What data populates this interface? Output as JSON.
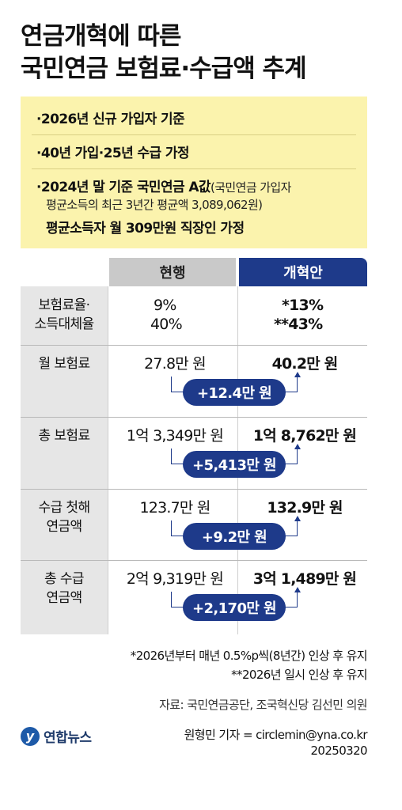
{
  "title": {
    "line1": "연금개혁에 따른",
    "line2": "국민연금 보험료·수급액 추계"
  },
  "notes": {
    "n1": "·2026년 신규 가입자 기준",
    "n2": "·40년 가입·25년 수급 가정",
    "n3_bold": "·2024년 말 기준 국민연금 A값",
    "n3_sub1": "(국민연금 가입자",
    "n3_sub2": "평균소득의 최근 3년간 평균액 3,089,062원)",
    "n3_bold2": "평균소득자 월 309만원 직장인 가정"
  },
  "headers": {
    "current": "현행",
    "reform": "개혁안"
  },
  "chart_data": {
    "type": "table",
    "columns": [
      "현행",
      "개혁안"
    ],
    "rows": [
      {
        "label1": "보험료율·",
        "label2": "소득대체율",
        "current1": "9%",
        "current2": "40%",
        "reform1": "*13%",
        "reform2": "**43%",
        "diff": ""
      },
      {
        "label1": "월 보험료",
        "label2": "",
        "current1": "27.8만 원",
        "current2": "",
        "reform1": "40.2만 원",
        "reform2": "",
        "diff": "+12.4만 원"
      },
      {
        "label1": "총 보험료",
        "label2": "",
        "current1": "1억 3,349만 원",
        "current2": "",
        "reform1": "1억 8,762만 원",
        "reform2": "",
        "diff": "+5,413만 원"
      },
      {
        "label1": "수급 첫해",
        "label2": "연금액",
        "current1": "123.7만 원",
        "current2": "",
        "reform1": "132.9만 원",
        "reform2": "",
        "diff": "+9.2만 원"
      },
      {
        "label1": "총 수급",
        "label2": "연금액",
        "current1": "2억 9,319만 원",
        "current2": "",
        "reform1": "3억 1,489만 원",
        "reform2": "",
        "diff": "+2,170만 원"
      }
    ]
  },
  "footnotes": {
    "f1": "*2026년부터 매년 0.5%p씩(8년간) 인상 후 유지",
    "f2": "**2026년 일시 인상 후 유지"
  },
  "source": "자료: 국민연금공단, 조국혁신당 김선민 의원",
  "logo": {
    "mark": "y",
    "text": "연합뉴스"
  },
  "credit": "원형민 기자 = circlemin@yna.co.kr",
  "date": "20250320",
  "colors": {
    "accent": "#1e3a8a",
    "note_bg": "#fbf3ad",
    "label_bg": "#e6e6e6",
    "header_current_bg": "#c9c9c9"
  }
}
